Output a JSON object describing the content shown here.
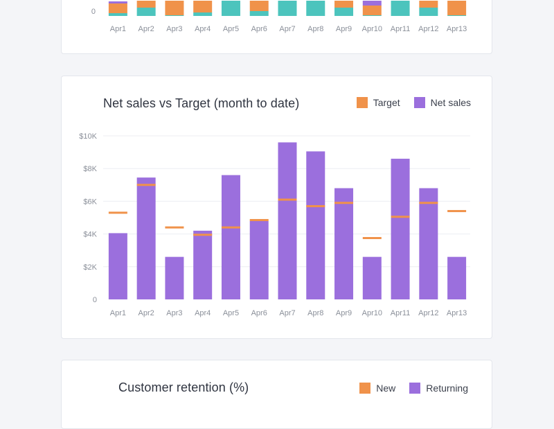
{
  "colors": {
    "target": "#f0924a",
    "net_sales": "#9b6fdd",
    "new": "#f0924a",
    "returning": "#9b6fdd",
    "teal": "#4cc4bd",
    "grid": "#eceef2",
    "axis_text": "#8a8f99"
  },
  "chart_data": [
    {
      "type": "bar",
      "stacked": true,
      "categories": [
        "Apr1",
        "Apr2",
        "Apr3",
        "Apr4",
        "Apr5",
        "Apr6",
        "Apr7",
        "Apr8",
        "Apr9",
        "Apr10",
        "Apr11",
        "Apr12",
        "Apr13"
      ],
      "y_tick_labels": [
        "0"
      ],
      "series": [
        {
          "color": "teal",
          "values": [
            4,
            12,
            1,
            5,
            22,
            7,
            22,
            22,
            12,
            1,
            22,
            12,
            1
          ]
        },
        {
          "color": "orange",
          "values": [
            14,
            10,
            21,
            17,
            0,
            15,
            0,
            0,
            10,
            14,
            0,
            10,
            21
          ]
        },
        {
          "color": "purple",
          "values": [
            3,
            0,
            0,
            0,
            0,
            0,
            0,
            0,
            0,
            7,
            0,
            0,
            0
          ]
        }
      ],
      "note": "partially visible (cropped at top)"
    },
    {
      "type": "bar",
      "title": "Net sales vs Target (month to date)",
      "categories": [
        "Apr1",
        "Apr2",
        "Apr3",
        "Apr4",
        "Apr5",
        "Apr6",
        "Apr7",
        "Apr8",
        "Apr9",
        "Apr10",
        "Apr11",
        "Apr12",
        "Apr13"
      ],
      "y_tick_labels": [
        "0",
        "$2K",
        "$4K",
        "$6K",
        "$8K",
        "$10K"
      ],
      "ylim": [
        0,
        10000
      ],
      "grid": true,
      "legend_position": "top-right",
      "series": [
        {
          "name": "Net sales",
          "type": "bar",
          "values": [
            4050,
            7450,
            2600,
            4200,
            7600,
            4800,
            9600,
            9050,
            6800,
            2600,
            8600,
            6800,
            2600
          ]
        },
        {
          "name": "Target",
          "type": "marker",
          "values": [
            5300,
            7000,
            4400,
            3950,
            4400,
            4850,
            6100,
            5700,
            5900,
            3750,
            5050,
            5900,
            5400
          ]
        }
      ]
    }
  ],
  "mid_chart": {
    "title": "Net sales vs Target (month to date)",
    "legend": {
      "target": "Target",
      "net_sales": "Net sales"
    }
  },
  "bottom_chart": {
    "title": "Customer retention (%)",
    "legend": {
      "new": "New",
      "returning": "Returning"
    }
  }
}
